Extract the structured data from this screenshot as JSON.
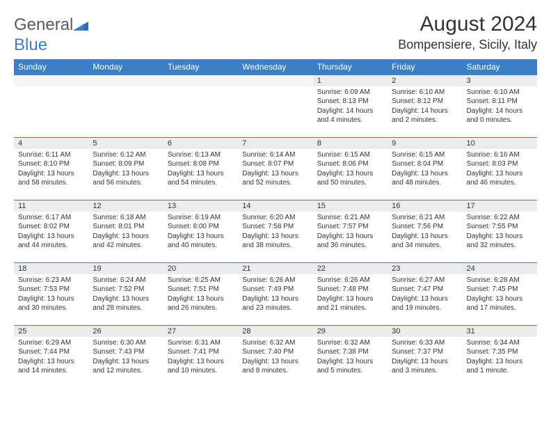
{
  "brand": {
    "part1": "General",
    "part2": "Blue"
  },
  "title": "August 2024",
  "location": "Bompensiere, Sicily, Italy",
  "colors": {
    "header_bg": "#3b7fc4",
    "header_text": "#ffffff",
    "daynum_bg": "#ececec",
    "border": "#3b7fc4",
    "text": "#333333",
    "logo_gray": "#5a5a5a",
    "logo_blue": "#3b7fc4",
    "page_bg": "#ffffff"
  },
  "typography": {
    "title_fontsize": 30,
    "location_fontsize": 18,
    "dayheader_fontsize": 12,
    "daynum_fontsize": 11,
    "body_fontsize": 10
  },
  "day_headers": [
    "Sunday",
    "Monday",
    "Tuesday",
    "Wednesday",
    "Thursday",
    "Friday",
    "Saturday"
  ],
  "weeks": [
    [
      {
        "n": "",
        "sr": "",
        "ss": "",
        "dl": ""
      },
      {
        "n": "",
        "sr": "",
        "ss": "",
        "dl": ""
      },
      {
        "n": "",
        "sr": "",
        "ss": "",
        "dl": ""
      },
      {
        "n": "",
        "sr": "",
        "ss": "",
        "dl": ""
      },
      {
        "n": "1",
        "sr": "Sunrise: 6:09 AM",
        "ss": "Sunset: 8:13 PM",
        "dl": "Daylight: 14 hours and 4 minutes."
      },
      {
        "n": "2",
        "sr": "Sunrise: 6:10 AM",
        "ss": "Sunset: 8:12 PM",
        "dl": "Daylight: 14 hours and 2 minutes."
      },
      {
        "n": "3",
        "sr": "Sunrise: 6:10 AM",
        "ss": "Sunset: 8:11 PM",
        "dl": "Daylight: 14 hours and 0 minutes."
      }
    ],
    [
      {
        "n": "4",
        "sr": "Sunrise: 6:11 AM",
        "ss": "Sunset: 8:10 PM",
        "dl": "Daylight: 13 hours and 58 minutes."
      },
      {
        "n": "5",
        "sr": "Sunrise: 6:12 AM",
        "ss": "Sunset: 8:09 PM",
        "dl": "Daylight: 13 hours and 56 minutes."
      },
      {
        "n": "6",
        "sr": "Sunrise: 6:13 AM",
        "ss": "Sunset: 8:08 PM",
        "dl": "Daylight: 13 hours and 54 minutes."
      },
      {
        "n": "7",
        "sr": "Sunrise: 6:14 AM",
        "ss": "Sunset: 8:07 PM",
        "dl": "Daylight: 13 hours and 52 minutes."
      },
      {
        "n": "8",
        "sr": "Sunrise: 6:15 AM",
        "ss": "Sunset: 8:06 PM",
        "dl": "Daylight: 13 hours and 50 minutes."
      },
      {
        "n": "9",
        "sr": "Sunrise: 6:15 AM",
        "ss": "Sunset: 8:04 PM",
        "dl": "Daylight: 13 hours and 48 minutes."
      },
      {
        "n": "10",
        "sr": "Sunrise: 6:16 AM",
        "ss": "Sunset: 8:03 PM",
        "dl": "Daylight: 13 hours and 46 minutes."
      }
    ],
    [
      {
        "n": "11",
        "sr": "Sunrise: 6:17 AM",
        "ss": "Sunset: 8:02 PM",
        "dl": "Daylight: 13 hours and 44 minutes."
      },
      {
        "n": "12",
        "sr": "Sunrise: 6:18 AM",
        "ss": "Sunset: 8:01 PM",
        "dl": "Daylight: 13 hours and 42 minutes."
      },
      {
        "n": "13",
        "sr": "Sunrise: 6:19 AM",
        "ss": "Sunset: 8:00 PM",
        "dl": "Daylight: 13 hours and 40 minutes."
      },
      {
        "n": "14",
        "sr": "Sunrise: 6:20 AM",
        "ss": "Sunset: 7:58 PM",
        "dl": "Daylight: 13 hours and 38 minutes."
      },
      {
        "n": "15",
        "sr": "Sunrise: 6:21 AM",
        "ss": "Sunset: 7:57 PM",
        "dl": "Daylight: 13 hours and 36 minutes."
      },
      {
        "n": "16",
        "sr": "Sunrise: 6:21 AM",
        "ss": "Sunset: 7:56 PM",
        "dl": "Daylight: 13 hours and 34 minutes."
      },
      {
        "n": "17",
        "sr": "Sunrise: 6:22 AM",
        "ss": "Sunset: 7:55 PM",
        "dl": "Daylight: 13 hours and 32 minutes."
      }
    ],
    [
      {
        "n": "18",
        "sr": "Sunrise: 6:23 AM",
        "ss": "Sunset: 7:53 PM",
        "dl": "Daylight: 13 hours and 30 minutes."
      },
      {
        "n": "19",
        "sr": "Sunrise: 6:24 AM",
        "ss": "Sunset: 7:52 PM",
        "dl": "Daylight: 13 hours and 28 minutes."
      },
      {
        "n": "20",
        "sr": "Sunrise: 6:25 AM",
        "ss": "Sunset: 7:51 PM",
        "dl": "Daylight: 13 hours and 26 minutes."
      },
      {
        "n": "21",
        "sr": "Sunrise: 6:26 AM",
        "ss": "Sunset: 7:49 PM",
        "dl": "Daylight: 13 hours and 23 minutes."
      },
      {
        "n": "22",
        "sr": "Sunrise: 6:26 AM",
        "ss": "Sunset: 7:48 PM",
        "dl": "Daylight: 13 hours and 21 minutes."
      },
      {
        "n": "23",
        "sr": "Sunrise: 6:27 AM",
        "ss": "Sunset: 7:47 PM",
        "dl": "Daylight: 13 hours and 19 minutes."
      },
      {
        "n": "24",
        "sr": "Sunrise: 6:28 AM",
        "ss": "Sunset: 7:45 PM",
        "dl": "Daylight: 13 hours and 17 minutes."
      }
    ],
    [
      {
        "n": "25",
        "sr": "Sunrise: 6:29 AM",
        "ss": "Sunset: 7:44 PM",
        "dl": "Daylight: 13 hours and 14 minutes."
      },
      {
        "n": "26",
        "sr": "Sunrise: 6:30 AM",
        "ss": "Sunset: 7:43 PM",
        "dl": "Daylight: 13 hours and 12 minutes."
      },
      {
        "n": "27",
        "sr": "Sunrise: 6:31 AM",
        "ss": "Sunset: 7:41 PM",
        "dl": "Daylight: 13 hours and 10 minutes."
      },
      {
        "n": "28",
        "sr": "Sunrise: 6:32 AM",
        "ss": "Sunset: 7:40 PM",
        "dl": "Daylight: 13 hours and 8 minutes."
      },
      {
        "n": "29",
        "sr": "Sunrise: 6:32 AM",
        "ss": "Sunset: 7:38 PM",
        "dl": "Daylight: 13 hours and 5 minutes."
      },
      {
        "n": "30",
        "sr": "Sunrise: 6:33 AM",
        "ss": "Sunset: 7:37 PM",
        "dl": "Daylight: 13 hours and 3 minutes."
      },
      {
        "n": "31",
        "sr": "Sunrise: 6:34 AM",
        "ss": "Sunset: 7:35 PM",
        "dl": "Daylight: 13 hours and 1 minute."
      }
    ]
  ]
}
